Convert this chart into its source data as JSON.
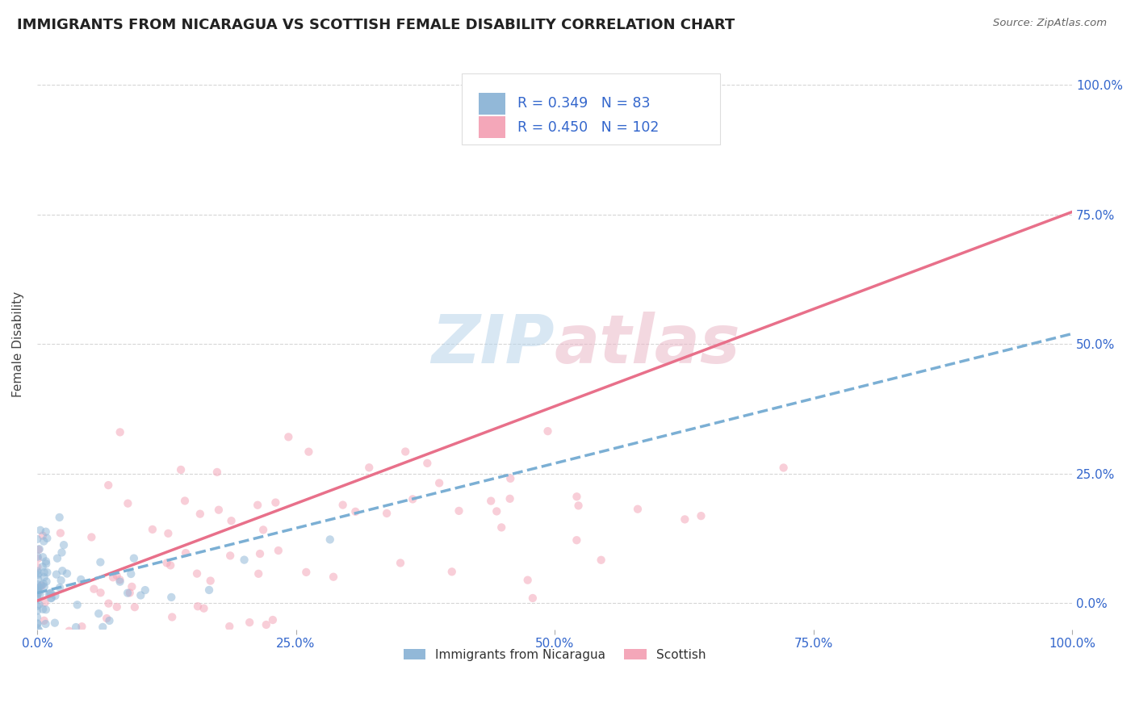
{
  "title": "IMMIGRANTS FROM NICARAGUA VS SCOTTISH FEMALE DISABILITY CORRELATION CHART",
  "source": "Source: ZipAtlas.com",
  "ylabel": "Female Disability",
  "legend_label1": "Immigrants from Nicaragua",
  "legend_label2": "Scottish",
  "R1": 0.349,
  "N1": 83,
  "R2": 0.45,
  "N2": 102,
  "color1": "#92b8d8",
  "color2": "#f4a7b9",
  "trendline1_color": "#7bafd4",
  "trendline2_color": "#e8708a",
  "background_color": "#ffffff",
  "grid_color": "#cccccc",
  "watermark_color1": "#b8d4ea",
  "watermark_color2": "#eab8c8",
  "title_color": "#222222",
  "label_color": "#3366cc",
  "tick_label_color": "#3366cc",
  "scatter_size": 55,
  "scatter_alpha": 0.55,
  "trendline1_slope": 0.5,
  "trendline1_intercept": 0.02,
  "trendline2_slope": 0.75,
  "trendline2_intercept": 0.005,
  "xlim": [
    0.0,
    1.0
  ],
  "ylim": [
    -0.05,
    1.05
  ],
  "ytick_vals": [
    0.0,
    0.25,
    0.5,
    0.75,
    1.0
  ],
  "xtick_vals": [
    0.0,
    0.25,
    0.5,
    0.75,
    1.0
  ]
}
